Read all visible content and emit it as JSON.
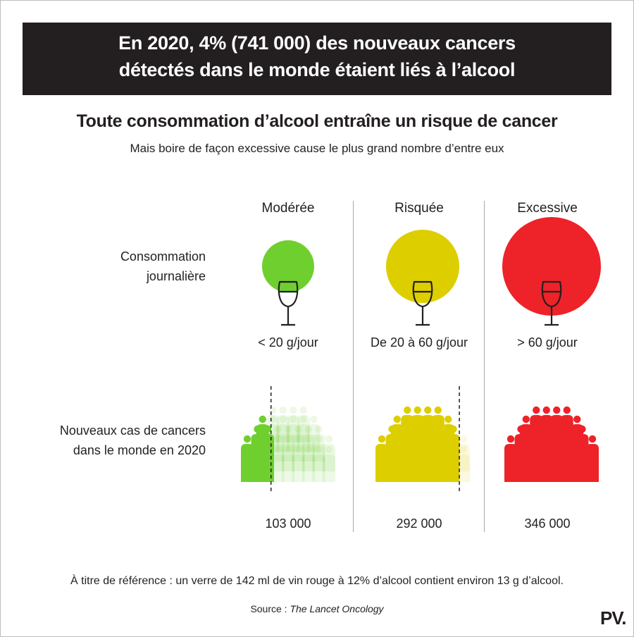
{
  "header": {
    "line1": "En 2020, 4% (741 000) des nouveaux cancers",
    "line2": "détectés dans le monde étaient liés à l’alcool"
  },
  "subtitle": "Toute consommation d’alcool entraîne un risque de cancer",
  "subsubtitle": "Mais boire de façon excessive cause le plus grand nombre d’entre eux",
  "row_labels": {
    "daily_line1": "Consommation",
    "daily_line2": "journalière",
    "cases_line1": "Nouveaux cas de cancers",
    "cases_line2": "dans le monde en 2020"
  },
  "footnote": "À titre de référence : un verre de 142 ml de vin rouge à 12% d’alcool contient environ 13 g d’alcool.",
  "source_prefix": "Source : ",
  "source_name": "The Lancet Oncology",
  "logo": "PV.",
  "colors": {
    "moderee": "#6fcf2f",
    "risquee": "#ddce00",
    "excessive": "#ee2229",
    "header_bg": "#231f20"
  },
  "icons": [
    "wine-glass-icon",
    "person-icon"
  ],
  "chart_data": {
    "type": "pictogram",
    "categories": [
      "Modérée",
      "Risquée",
      "Excessive"
    ],
    "amounts": [
      "< 20 g/jour",
      "De 20 à 60 g/jour",
      "> 60 g/jour"
    ],
    "values": [
      103000,
      292000,
      346000
    ],
    "value_labels": [
      "103 000",
      "292 000",
      "346 000"
    ],
    "total": 741000,
    "share_of_new_cancers_pct": 4
  }
}
